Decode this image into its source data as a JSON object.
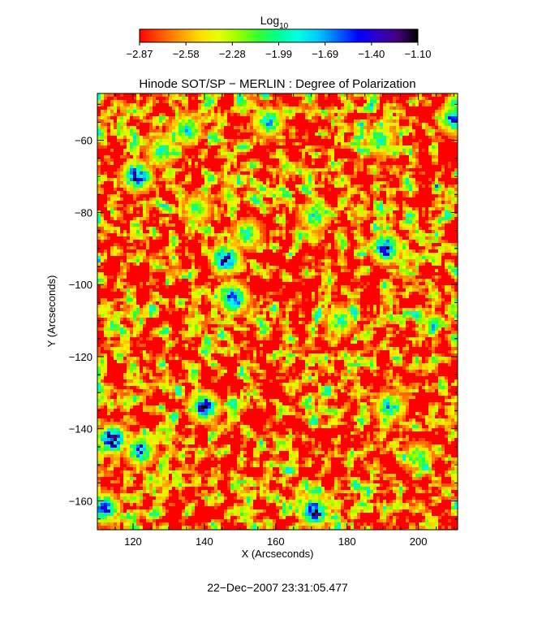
{
  "colorbar": {
    "label_main": "Log",
    "label_sub": "10",
    "ticks": [
      "−2.87",
      "−2.58",
      "−2.28",
      "−1.99",
      "−1.69",
      "−1.40",
      "−1.10"
    ],
    "colors": [
      "#ff0000",
      "#ff5000",
      "#ff9600",
      "#ffdc00",
      "#e6ff00",
      "#96ff00",
      "#32ff32",
      "#00ff96",
      "#00ffe6",
      "#00c8ff",
      "#0064ff",
      "#0000ff",
      "#3000c8",
      "#46007a",
      "#000000"
    ]
  },
  "chart_data": {
    "type": "heatmap",
    "title": "Hinode SOT/SP − MERLIN : Degree of Polarization",
    "xlabel": "X (Arcseconds)",
    "ylabel": "Y (Arcseconds)",
    "xlim": [
      110,
      211
    ],
    "ylim": [
      -168,
      -47
    ],
    "x_ticks": [
      120,
      140,
      160,
      180,
      200
    ],
    "y_ticks": [
      -60,
      -80,
      -100,
      -120,
      -140,
      -160
    ],
    "x_tick_labels": [
      "120",
      "140",
      "160",
      "180",
      "200"
    ],
    "y_tick_labels": [
      "−60",
      "−80",
      "−100",
      "−120",
      "−140",
      "−160"
    ],
    "value_range": [
      -2.87,
      -1.1
    ],
    "colormap": "rainbow (red → black)",
    "background_value": -2.87,
    "features": [
      {
        "x": 121,
        "y": -70,
        "value": -1.4
      },
      {
        "x": 128,
        "y": -63,
        "value": -1.9
      },
      {
        "x": 146,
        "y": -93,
        "value": -1.4
      },
      {
        "x": 148,
        "y": -104,
        "value": -1.5
      },
      {
        "x": 171,
        "y": -81,
        "value": -1.9
      },
      {
        "x": 191,
        "y": -90,
        "value": -1.4
      },
      {
        "x": 140,
        "y": -134,
        "value": -1.4
      },
      {
        "x": 114,
        "y": -143,
        "value": -1.3
      },
      {
        "x": 122,
        "y": -146,
        "value": -1.6
      },
      {
        "x": 171,
        "y": -163,
        "value": -1.4
      },
      {
        "x": 112,
        "y": -162,
        "value": -1.5
      },
      {
        "x": 192,
        "y": -134,
        "value": -1.8
      },
      {
        "x": 158,
        "y": -55,
        "value": -1.8
      },
      {
        "x": 135,
        "y": -57,
        "value": -1.8
      },
      {
        "x": 210,
        "y": -54,
        "value": -1.6
      },
      {
        "x": 189,
        "y": -60,
        "value": -1.9
      },
      {
        "x": 138,
        "y": -79,
        "value": -2.1
      },
      {
        "x": 152,
        "y": -86,
        "value": -2.0
      },
      {
        "x": 178,
        "y": -110,
        "value": -2.0
      },
      {
        "x": 200,
        "y": -148,
        "value": -2.0
      }
    ]
  },
  "timestamp": "22−Dec−2007 23:31:05.477"
}
